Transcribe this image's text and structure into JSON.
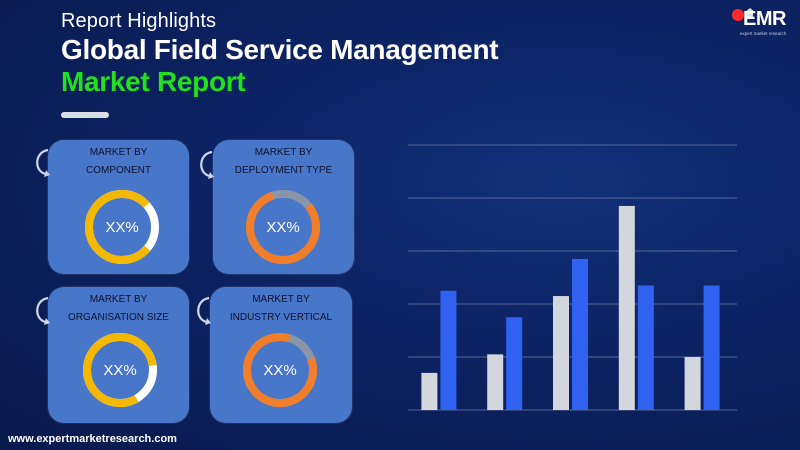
{
  "header": {
    "kicker": "Report Highlights",
    "title_line1": "Global Field Service Management",
    "title_line2": "Market Report"
  },
  "brand": {
    "logo_text": "EMR",
    "logo_tagline": "expert market research",
    "website": "www.expertmarketresearch.com"
  },
  "cards": [
    {
      "label_line1": "MARKET BY",
      "label_line2": "COMPONENT",
      "value": "XX%",
      "ring_color": "#f5b800"
    },
    {
      "label_line1": "MARKET BY",
      "label_line2": "DEPLOYMENT TYPE",
      "value": "XX%",
      "ring_color": "#f07e2a"
    },
    {
      "label_line1": "MARKET BY",
      "label_line2": "ORGANISATION SIZE",
      "value": "XX%",
      "ring_color": "#f5b800"
    },
    {
      "label_line1": "MARKET BY",
      "label_line2": "INDUSTRY VERTICAL",
      "value": "XX%",
      "ring_color": "#f07e2a"
    }
  ],
  "colors": {
    "accent_title": "#22e01e",
    "card_bg": "#4876c9",
    "series_grey": "#d3d6dc",
    "series_blue": "#2f62f0"
  },
  "chart_data": {
    "type": "bar",
    "categories": [
      "",
      "",
      "",
      "",
      ""
    ],
    "series": [
      {
        "values": [
          0.7,
          1.05,
          2.15,
          3.85,
          1.0
        ]
      },
      {
        "values": [
          2.25,
          1.75,
          2.85,
          2.35,
          2.35
        ]
      }
    ],
    "ylim": [
      0,
      5
    ],
    "grid": true,
    "title": "",
    "xlabel": "",
    "ylabel": ""
  }
}
